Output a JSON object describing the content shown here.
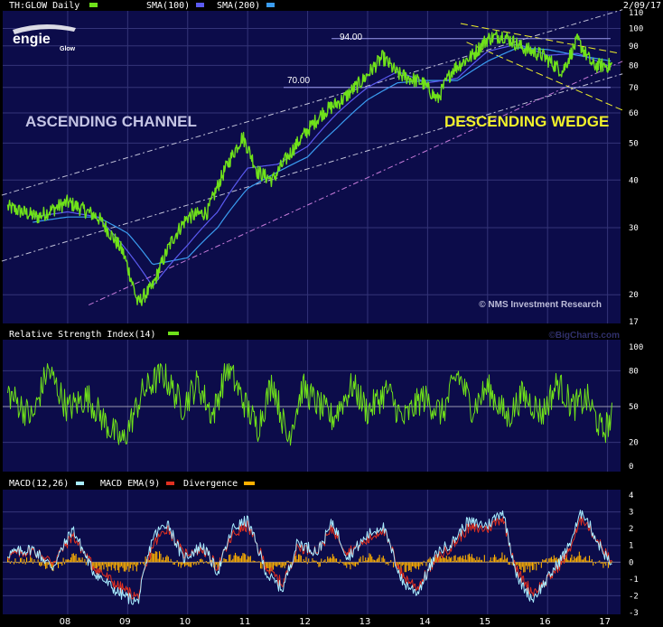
{
  "header": {
    "symbol_label": "TH:GLOW Daily",
    "sma100_label": "SMA(100)",
    "sma200_label": "SMA(200)",
    "date": "2/09/17"
  },
  "logo": {
    "brand": "engie",
    "sub": "Glow"
  },
  "colors": {
    "background": "#000000",
    "panel": "#0c0c4a",
    "grid": "#343478",
    "price": "#6fe11a",
    "sma100": "#5a5af0",
    "sma200": "#3a9cf0",
    "channel": "#c0c0d8",
    "channel_lower": "#c47ad8",
    "wedge": "#f0f02a",
    "level": "#9c9cf0",
    "rsi": "#6fe11a",
    "macd": "#a8ecff",
    "macd_ema": "#e03020",
    "divergence": "#ffb000",
    "ascending_text": "#c4c4e4",
    "descending_text": "#f0f02a",
    "copyright": "#bcbcd8",
    "watermark": "#30306c"
  },
  "annotations": {
    "ascending_channel": "ASCENDING CHANNEL",
    "descending_wedge": "DESCENDING WEDGE",
    "level_94": "94.00",
    "level_70": "70.00",
    "copyright": "© NMS Investment Research",
    "watermark": "©BigCharts.com"
  },
  "chart_data": [
    {
      "type": "line",
      "title": "TH:GLOW Daily",
      "scale": "log",
      "ylim": [
        17,
        110
      ],
      "y_ticks": [
        "110",
        "100",
        "90",
        "80",
        "70",
        "60",
        "50",
        "40",
        "30",
        "20",
        "17"
      ],
      "x_ticks": [
        "08",
        "09",
        "10",
        "11",
        "12",
        "13",
        "14",
        "15",
        "16",
        "17"
      ],
      "grid": true,
      "legend": "top-left",
      "series": [
        {
          "name": "TH:GLOW Daily",
          "x": [
            "2007-01",
            "2007-07",
            "2008-01",
            "2008-07",
            "2008-12",
            "2009-03",
            "2009-06",
            "2009-10",
            "2010-01",
            "2010-05",
            "2010-09",
            "2010-12",
            "2011-03",
            "2011-06",
            "2011-09",
            "2011-12",
            "2012-04",
            "2012-08",
            "2012-12",
            "2013-04",
            "2013-07",
            "2013-12",
            "2014-03",
            "2014-06",
            "2014-10",
            "2015-01",
            "2015-04",
            "2015-08",
            "2015-12",
            "2016-04",
            "2016-07",
            "2016-10",
            "2017-02"
          ],
          "values": [
            34,
            32,
            35,
            32,
            26,
            19,
            21,
            28,
            32,
            33,
            44,
            52,
            42,
            40,
            46,
            52,
            60,
            65,
            73,
            84,
            76,
            72,
            65,
            78,
            85,
            94,
            96,
            89,
            85,
            77,
            93,
            80,
            80
          ]
        },
        {
          "name": "SMA(100)",
          "x": [
            "2007-06",
            "2008-01",
            "2008-07",
            "2009-01",
            "2009-06",
            "2010-01",
            "2010-07",
            "2011-01",
            "2011-07",
            "2012-01",
            "2012-07",
            "2013-01",
            "2013-07",
            "2014-01",
            "2014-07",
            "2015-01",
            "2015-07",
            "2016-01",
            "2016-07",
            "2017-02"
          ],
          "values": [
            32,
            33,
            32,
            26,
            21,
            27,
            33,
            43,
            44,
            49,
            60,
            70,
            77,
            72,
            74,
            87,
            91,
            85,
            86,
            79
          ]
        },
        {
          "name": "SMA(200)",
          "x": [
            "2007-06",
            "2008-01",
            "2008-07",
            "2009-01",
            "2009-06",
            "2010-01",
            "2010-07",
            "2011-01",
            "2011-07",
            "2012-01",
            "2012-07",
            "2013-01",
            "2013-07",
            "2014-01",
            "2014-07",
            "2015-01",
            "2015-07",
            "2016-01",
            "2016-07",
            "2017-02"
          ],
          "values": [
            31,
            32,
            32,
            29,
            24,
            25,
            30,
            38,
            42,
            46,
            55,
            65,
            72,
            73,
            73,
            82,
            89,
            88,
            85,
            82
          ]
        }
      ]
    },
    {
      "type": "line",
      "title": "Relative Strength Index(14)",
      "ylim": [
        0,
        100
      ],
      "y_ticks": [
        "100",
        "80",
        "50",
        "20",
        "0"
      ],
      "grid": true,
      "series": [
        {
          "name": "Relative Strength Index(14)",
          "x": [
            "2007-01",
            "2007-06",
            "2007-09",
            "2008-01",
            "2008-05",
            "2008-09",
            "2008-12",
            "2009-04",
            "2009-08",
            "2009-12",
            "2010-03",
            "2010-06",
            "2010-09",
            "2010-12",
            "2011-03",
            "2011-06",
            "2011-09",
            "2011-12",
            "2012-03",
            "2012-06",
            "2012-10",
            "2013-01",
            "2013-05",
            "2013-08",
            "2013-12",
            "2014-04",
            "2014-07",
            "2014-10",
            "2015-01",
            "2015-05",
            "2015-08",
            "2015-12",
            "2016-03",
            "2016-06",
            "2016-09",
            "2016-12",
            "2017-02"
          ],
          "values": [
            62,
            40,
            82,
            48,
            58,
            34,
            20,
            62,
            78,
            50,
            70,
            42,
            84,
            56,
            32,
            72,
            22,
            66,
            52,
            40,
            68,
            46,
            64,
            38,
            58,
            44,
            78,
            48,
            66,
            40,
            60,
            44,
            70,
            50,
            56,
            28,
            42
          ]
        }
      ]
    },
    {
      "type": "line",
      "title": "MACD(12,26)",
      "ylim": [
        -3,
        4
      ],
      "y_ticks": [
        "4",
        "3",
        "2",
        "1",
        "0",
        "-1",
        "-2",
        "-3"
      ],
      "grid": true,
      "series": [
        {
          "name": "MACD(12,26)",
          "x": [
            "2007-01",
            "2007-06",
            "2007-10",
            "2008-02",
            "2008-06",
            "2008-11",
            "2009-03",
            "2009-06",
            "2009-09",
            "2009-12",
            "2010-04",
            "2010-07",
            "2010-10",
            "2011-01",
            "2011-05",
            "2011-08",
            "2011-11",
            "2012-03",
            "2012-06",
            "2012-09",
            "2013-01",
            "2013-04",
            "2013-08",
            "2013-11",
            "2014-03",
            "2014-06",
            "2014-09",
            "2015-01",
            "2015-04",
            "2015-07",
            "2015-10",
            "2016-01",
            "2016-05",
            "2016-08",
            "2016-11",
            "2017-02"
          ],
          "values": [
            0.5,
            0.8,
            -0.3,
            2.0,
            -0.5,
            -1.8,
            -2.4,
            1.5,
            2.4,
            0.2,
            1.0,
            -0.6,
            2.0,
            2.5,
            -0.8,
            -1.6,
            1.2,
            0.6,
            2.4,
            0.3,
            1.6,
            2.2,
            -1.2,
            -1.8,
            0.6,
            1.2,
            2.4,
            2.2,
            3.1,
            -1.0,
            -2.2,
            -1.0,
            0.8,
            3.1,
            1.2,
            -0.3
          ]
        },
        {
          "name": "MACD EMA(9)",
          "x": [
            "2007-01",
            "2007-06",
            "2007-10",
            "2008-02",
            "2008-06",
            "2008-11",
            "2009-03",
            "2009-06",
            "2009-09",
            "2009-12",
            "2010-04",
            "2010-07",
            "2010-10",
            "2011-01",
            "2011-05",
            "2011-08",
            "2011-11",
            "2012-03",
            "2012-06",
            "2012-09",
            "2013-01",
            "2013-04",
            "2013-08",
            "2013-11",
            "2014-03",
            "2014-06",
            "2014-09",
            "2015-01",
            "2015-04",
            "2015-07",
            "2015-10",
            "2016-01",
            "2016-05",
            "2016-08",
            "2016-11",
            "2017-02"
          ],
          "values": [
            0.4,
            0.7,
            0.0,
            1.6,
            -0.2,
            -1.4,
            -2.1,
            1.0,
            2.1,
            0.5,
            0.8,
            -0.3,
            1.6,
            2.2,
            -0.4,
            -1.3,
            0.9,
            0.7,
            2.0,
            0.6,
            1.3,
            2.0,
            -0.8,
            -1.5,
            0.3,
            1.0,
            2.0,
            2.0,
            2.7,
            -0.6,
            -1.8,
            -1.1,
            0.5,
            2.7,
            1.3,
            -0.1
          ]
        },
        {
          "name": "Divergence",
          "x": [
            "2007-01",
            "2007-06",
            "2007-10",
            "2008-02",
            "2008-06",
            "2008-11",
            "2009-03",
            "2009-06",
            "2009-09",
            "2009-12",
            "2010-04",
            "2010-07",
            "2010-10",
            "2011-01",
            "2011-05",
            "2011-08",
            "2011-11",
            "2012-03",
            "2012-06",
            "2012-09",
            "2013-01",
            "2013-04",
            "2013-08",
            "2013-11",
            "2014-03",
            "2014-06",
            "2014-09",
            "2015-01",
            "2015-04",
            "2015-07",
            "2015-10",
            "2016-01",
            "2016-05",
            "2016-08",
            "2016-11",
            "2017-02"
          ],
          "values": [
            0.1,
            0.1,
            -0.3,
            0.4,
            -0.3,
            -0.4,
            -0.3,
            0.5,
            0.3,
            -0.3,
            0.2,
            -0.3,
            0.4,
            0.3,
            -0.4,
            -0.3,
            0.3,
            -0.1,
            0.4,
            -0.3,
            0.3,
            0.2,
            -0.4,
            -0.3,
            0.3,
            0.2,
            0.4,
            0.2,
            0.4,
            -0.4,
            -0.4,
            0.1,
            0.3,
            0.4,
            -0.1,
            -0.2
          ]
        }
      ]
    }
  ]
}
